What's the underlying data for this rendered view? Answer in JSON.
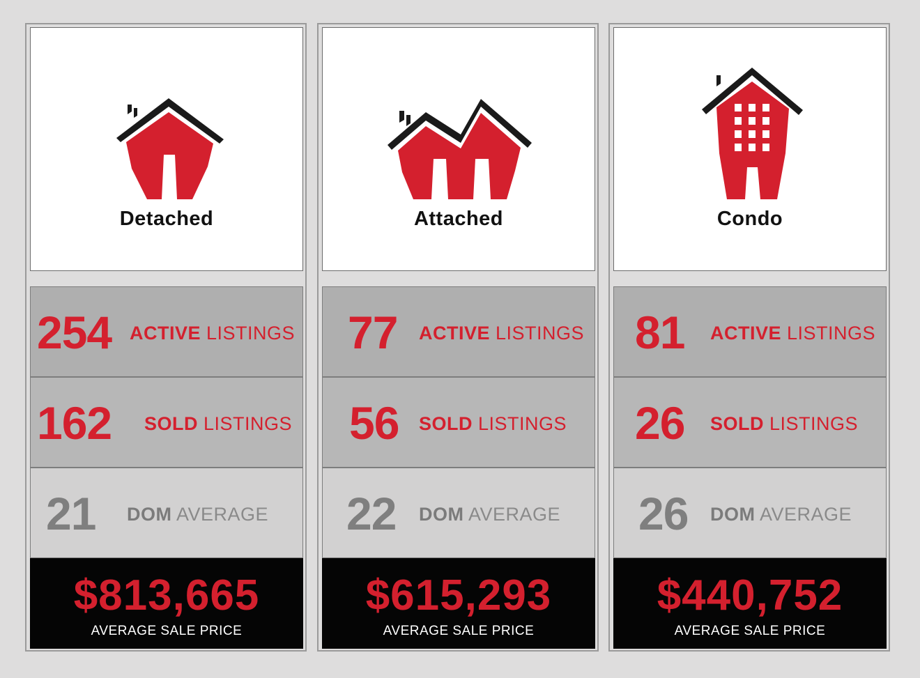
{
  "categories": [
    {
      "name": "Detached",
      "icon": "detached-house-icon",
      "active_value": "254",
      "active_bold": "ACTIVE",
      "active_rest": "LISTINGS",
      "sold_value": "162",
      "sold_bold": "SOLD",
      "sold_rest": "LISTINGS",
      "dom_value": "21",
      "dom_bold": "DOM",
      "dom_rest": "AVERAGE",
      "price": "$813,665",
      "price_label": "AVERAGE SALE PRICE"
    },
    {
      "name": "Attached",
      "icon": "attached-house-icon",
      "active_value": "77",
      "active_bold": "ACTIVE",
      "active_rest": "LISTINGS",
      "sold_value": "56",
      "sold_bold": "SOLD",
      "sold_rest": "LISTINGS",
      "dom_value": "22",
      "dom_bold": "DOM",
      "dom_rest": "AVERAGE",
      "price": "$615,293",
      "price_label": "AVERAGE SALE PRICE"
    },
    {
      "name": "Condo",
      "icon": "condo-building-icon",
      "active_value": "81",
      "active_bold": "ACTIVE",
      "active_rest": "LISTINGS",
      "sold_value": "26",
      "sold_bold": "SOLD",
      "sold_rest": "LISTINGS",
      "dom_value": "26",
      "dom_bold": "DOM",
      "dom_rest": "AVERAGE",
      "price": "$440,752",
      "price_label": "AVERAGE SALE PRICE"
    }
  ],
  "colors": {
    "accent_red": "#d4202e",
    "roof_black": "#1a1a1a",
    "price_bg": "#050505",
    "dom_grey": "#7f7f7f"
  }
}
